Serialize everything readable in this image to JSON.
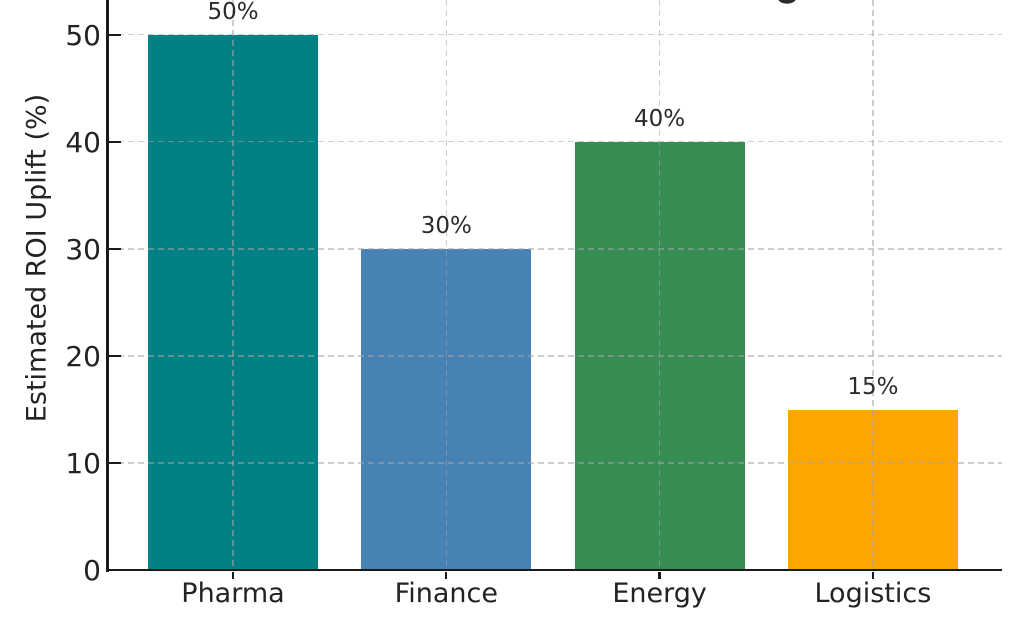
{
  "chart_data": {
    "type": "bar",
    "title_cropped_offscreen": true,
    "categories": [
      "Pharma",
      "Finance",
      "Energy",
      "Logistics"
    ],
    "values": [
      50,
      30,
      40,
      15
    ],
    "value_labels": [
      "50%",
      "30%",
      "40%",
      "15%"
    ],
    "colors": [
      "#038083",
      "#4682b4",
      "#368e54",
      "#ffa502"
    ],
    "ylabel": "Estimated ROI Uplift (%)",
    "yticks": [
      0,
      10,
      20,
      30,
      40,
      50
    ],
    "ylim": [
      0,
      52
    ],
    "xlabel": "",
    "legend": "none",
    "grid": {
      "shown": true,
      "style": "dashed",
      "axes": "both",
      "color": "#d3d3d3",
      "drawn_over_bars": true
    },
    "background_color": "#ffffff",
    "text_color": "#232323",
    "spine_color": "#1a1a1a"
  }
}
